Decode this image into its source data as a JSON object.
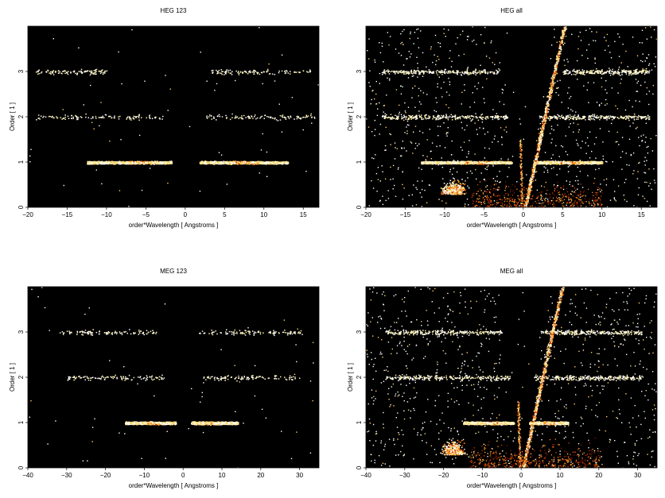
{
  "chart_data": [
    {
      "type": "heatmap",
      "title": "HEG 123",
      "xlabel": "order*Wavelength [ Angstroms ]",
      "ylabel": "Order [ 1 ]",
      "xlim": [
        -20,
        17
      ],
      "ylim": [
        0,
        4
      ],
      "xticks": [
        -20,
        -15,
        -10,
        -5,
        0,
        5,
        10,
        15
      ],
      "yticks": [
        0,
        1,
        2,
        3
      ],
      "bands": [
        {
          "order": 1,
          "ranges": [
            [
              -12.5,
              -1.8
            ],
            [
              1.8,
              13
            ]
          ],
          "peaks": [
            -5.5,
            7.5
          ]
        },
        {
          "order": 2,
          "ranges": [
            [
              -19,
              -2.5
            ],
            [
              2.5,
              16.5
            ]
          ]
        },
        {
          "order": 3,
          "ranges": [
            [
              -19,
              -10
            ],
            [
              3,
              16
            ]
          ]
        }
      ],
      "background_scatter": "sparse",
      "zero_order_streak": false
    },
    {
      "type": "heatmap",
      "title": "HEG all",
      "xlabel": "order*Wavelength [ Angstroms ]",
      "ylabel": "Order [ 1 ]",
      "xlim": [
        -20,
        17
      ],
      "ylim": [
        0,
        4
      ],
      "xticks": [
        -20,
        -15,
        -10,
        -5,
        0,
        5,
        10,
        15
      ],
      "yticks": [
        0,
        1,
        2,
        3
      ],
      "bands": [
        {
          "order": 1,
          "ranges": [
            [
              -13,
              -1.5
            ],
            [
              1.5,
              10
            ]
          ],
          "peaks": [
            -6,
            6
          ]
        },
        {
          "order": 2,
          "ranges": [
            [
              -18,
              -2
            ],
            [
              2,
              16
            ]
          ]
        },
        {
          "order": 3,
          "ranges": [
            [
              -18,
              -3
            ],
            [
              5,
              16
            ]
          ]
        }
      ],
      "background_scatter": "dense",
      "zero_order_streak": true
    },
    {
      "type": "heatmap",
      "title": "MEG 123",
      "xlabel": "order*Wavelength [ Angstroms ]",
      "ylabel": "Order [ 1 ]",
      "xlim": [
        -40,
        35
      ],
      "ylim": [
        0,
        4
      ],
      "xticks": [
        -40,
        -30,
        -20,
        -10,
        0,
        10,
        20,
        30
      ],
      "yticks": [
        0,
        1,
        2,
        3
      ],
      "bands": [
        {
          "order": 1,
          "ranges": [
            [
              -15,
              -2
            ],
            [
              2,
              14
            ]
          ],
          "peaks": [
            -8,
            7
          ]
        },
        {
          "order": 2,
          "ranges": [
            [
              -30,
              -5
            ],
            [
              5,
              30
            ]
          ]
        },
        {
          "order": 3,
          "ranges": [
            [
              -32,
              -7
            ],
            [
              4,
              31
            ]
          ]
        }
      ],
      "background_scatter": "sparse",
      "zero_order_streak": false
    },
    {
      "type": "heatmap",
      "title": "MEG all",
      "xlabel": "order*Wavelength [ Angstroms ]",
      "ylabel": "Order [ 1 ]",
      "xlim": [
        -40,
        35
      ],
      "ylim": [
        0,
        4
      ],
      "xticks": [
        -40,
        -30,
        -20,
        -10,
        0,
        10,
        20,
        30
      ],
      "yticks": [
        0,
        1,
        2,
        3
      ],
      "bands": [
        {
          "order": 1,
          "ranges": [
            [
              -15,
              -2
            ],
            [
              2,
              12
            ]
          ],
          "peaks": [
            -8,
            7
          ]
        },
        {
          "order": 2,
          "ranges": [
            [
              -35,
              -3
            ],
            [
              3,
              31
            ]
          ]
        },
        {
          "order": 3,
          "ranges": [
            [
              -35,
              -5
            ],
            [
              5,
              31
            ]
          ]
        }
      ],
      "background_scatter": "dense",
      "zero_order_streak": true
    }
  ]
}
